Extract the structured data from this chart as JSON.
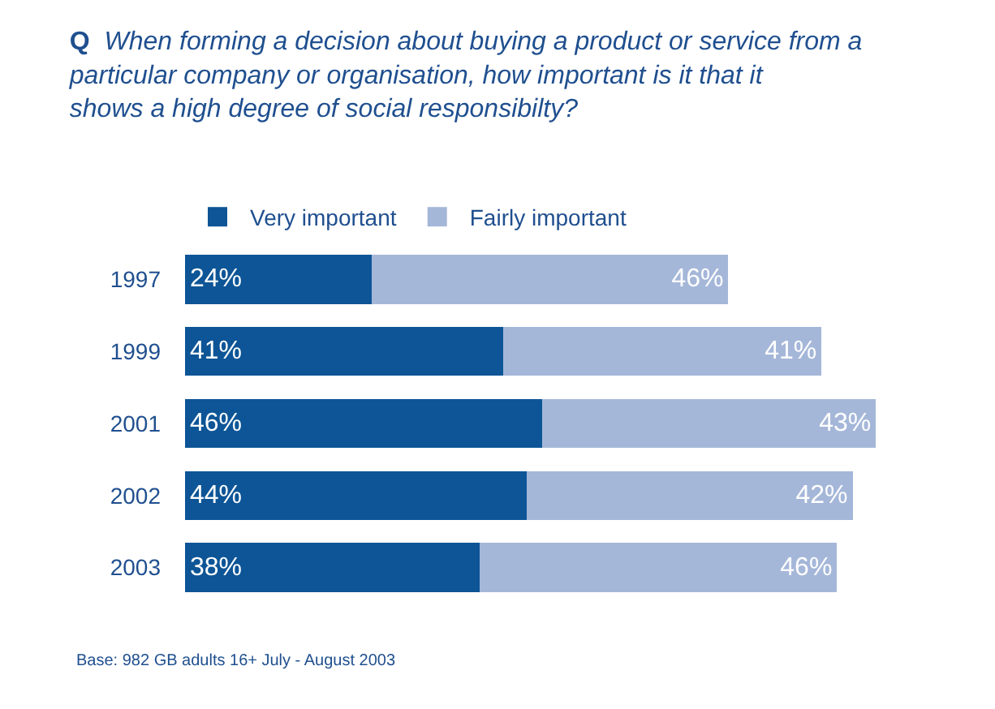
{
  "chart_data": {
    "type": "bar",
    "orientation": "horizontal",
    "stacked": true,
    "title": "Q When forming a decision about buying a product or service from a particular company or organisation, how important is it that it shows a high degree of social responsibilty?",
    "categories": [
      "1997",
      "1999",
      "2001",
      "2002",
      "2003"
    ],
    "series": [
      {
        "name": "Very important",
        "color": "#0d5596",
        "values": [
          24,
          41,
          46,
          44,
          38
        ],
        "value_labels": [
          "24%",
          "41%",
          "46%",
          "44%",
          "38%"
        ]
      },
      {
        "name": "Fairly important",
        "color": "#a5b7d9",
        "values": [
          46,
          41,
          43,
          42,
          46
        ],
        "value_labels": [
          "46%",
          "41%",
          "43%",
          "42%",
          "46%"
        ]
      }
    ],
    "legend": "top left",
    "grid": false,
    "annotations": [
      "Base: 982 GB adults 16+ July - August 2003"
    ]
  }
}
